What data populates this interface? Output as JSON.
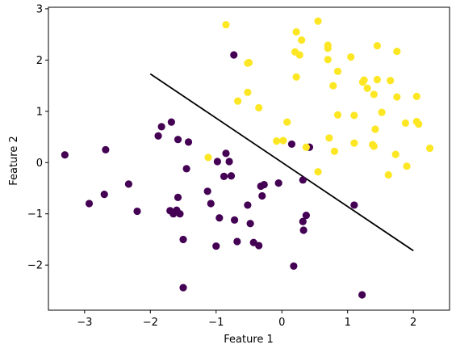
{
  "chart_data": {
    "type": "scatter",
    "xlabel": "Feature 1",
    "ylabel": "Feature 2",
    "xlim": [
      -3.55,
      2.55
    ],
    "ylim": [
      -2.88,
      3.03
    ],
    "xticks": [
      -3,
      -2,
      -1,
      0,
      1,
      2
    ],
    "yticks": [
      -2,
      -1,
      0,
      1,
      2,
      3
    ],
    "colors": {
      "class0": "#440154",
      "class1": "#fde725",
      "line": "#000000"
    },
    "decision_boundary": {
      "x": [
        -2.0,
        2.0
      ],
      "y": [
        1.73,
        -1.72
      ]
    },
    "series": [
      {
        "class": 0,
        "points": [
          [
            -3.3,
            0.15
          ],
          [
            -2.93,
            -0.8
          ],
          [
            -2.68,
            0.25
          ],
          [
            -2.7,
            -0.62
          ],
          [
            -2.33,
            -0.42
          ],
          [
            -2.2,
            -0.95
          ],
          [
            -1.88,
            0.52
          ],
          [
            -1.83,
            0.7
          ],
          [
            -1.68,
            0.79
          ],
          [
            -1.58,
            0.45
          ],
          [
            -1.42,
            0.4
          ],
          [
            -1.45,
            -0.12
          ],
          [
            -1.7,
            -0.94
          ],
          [
            -1.65,
            -1.0
          ],
          [
            -1.58,
            -0.68
          ],
          [
            -1.6,
            -0.93
          ],
          [
            -1.55,
            -1.0
          ],
          [
            -1.5,
            -1.5
          ],
          [
            -1.5,
            -2.44
          ],
          [
            -1.13,
            -0.56
          ],
          [
            -1.08,
            -0.8
          ],
          [
            -1.0,
            -1.63
          ],
          [
            -0.98,
            0.02
          ],
          [
            -0.95,
            -1.08
          ],
          [
            -0.88,
            -0.27
          ],
          [
            -0.85,
            0.18
          ],
          [
            -0.8,
            0.02
          ],
          [
            -0.77,
            -0.26
          ],
          [
            -0.73,
            2.1
          ],
          [
            -0.72,
            -1.12
          ],
          [
            -0.68,
            -1.54
          ],
          [
            -0.52,
            -0.83
          ],
          [
            -0.48,
            -1.19
          ],
          [
            -0.43,
            -1.56
          ],
          [
            -0.35,
            -1.62
          ],
          [
            -0.32,
            -0.46
          ],
          [
            -0.3,
            -0.65
          ],
          [
            -0.27,
            -0.43
          ],
          [
            -0.05,
            -0.4
          ],
          [
            0.15,
            0.36
          ],
          [
            0.18,
            -2.02
          ],
          [
            0.32,
            -0.34
          ],
          [
            0.32,
            -1.15
          ],
          [
            0.33,
            -1.32
          ],
          [
            0.37,
            -1.03
          ],
          [
            0.42,
            0.3
          ],
          [
            1.1,
            -0.83
          ],
          [
            1.22,
            -2.58
          ]
        ]
      },
      {
        "class": 1,
        "points": [
          [
            -1.12,
            0.1
          ],
          [
            -0.85,
            2.69
          ],
          [
            -0.67,
            1.2
          ],
          [
            -0.52,
            1.94
          ],
          [
            -0.5,
            1.95
          ],
          [
            -0.52,
            1.37
          ],
          [
            -0.35,
            1.07
          ],
          [
            -0.08,
            0.42
          ],
          [
            0.02,
            0.43
          ],
          [
            0.08,
            0.79
          ],
          [
            0.2,
            2.16
          ],
          [
            0.22,
            2.55
          ],
          [
            0.22,
            1.67
          ],
          [
            0.27,
            2.1
          ],
          [
            0.3,
            2.39
          ],
          [
            0.37,
            0.3
          ],
          [
            0.55,
            2.76
          ],
          [
            0.55,
            -0.18
          ],
          [
            0.7,
            2.29
          ],
          [
            0.7,
            2.23
          ],
          [
            0.7,
            2.01
          ],
          [
            0.72,
            0.48
          ],
          [
            0.78,
            1.5
          ],
          [
            0.8,
            0.22
          ],
          [
            0.85,
            1.78
          ],
          [
            0.85,
            0.93
          ],
          [
            1.05,
            2.06
          ],
          [
            1.1,
            0.92
          ],
          [
            1.1,
            0.38
          ],
          [
            1.23,
            1.57
          ],
          [
            1.25,
            1.61
          ],
          [
            1.3,
            1.45
          ],
          [
            1.38,
            0.35
          ],
          [
            1.4,
            0.32
          ],
          [
            1.4,
            1.33
          ],
          [
            1.42,
            0.65
          ],
          [
            1.45,
            2.28
          ],
          [
            1.45,
            1.62
          ],
          [
            1.52,
            0.98
          ],
          [
            1.62,
            -0.24
          ],
          [
            1.65,
            1.6
          ],
          [
            1.73,
            0.16
          ],
          [
            1.75,
            2.17
          ],
          [
            1.75,
            1.28
          ],
          [
            1.88,
            0.77
          ],
          [
            1.9,
            -0.07
          ],
          [
            2.05,
            1.29
          ],
          [
            2.05,
            0.8
          ],
          [
            2.08,
            0.75
          ],
          [
            2.25,
            0.28
          ]
        ]
      }
    ]
  }
}
